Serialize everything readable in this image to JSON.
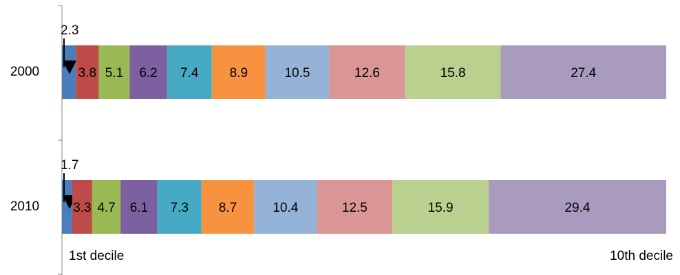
{
  "chart_data": {
    "type": "stacked-bar",
    "orientation": "horizontal",
    "categories": [
      "2000",
      "2010"
    ],
    "series": [
      {
        "color": "#4a7ebb",
        "values": [
          2.3,
          1.7
        ]
      },
      {
        "color": "#be4b48",
        "values": [
          3.8,
          3.3
        ]
      },
      {
        "color": "#98b954",
        "values": [
          5.1,
          4.7
        ]
      },
      {
        "color": "#7d60a0",
        "values": [
          6.2,
          6.1
        ]
      },
      {
        "color": "#46aac5",
        "values": [
          7.4,
          7.3
        ]
      },
      {
        "color": "#f69240",
        "values": [
          8.9,
          8.7
        ]
      },
      {
        "color": "#95b3d7",
        "values": [
          10.5,
          10.4
        ]
      },
      {
        "color": "#d99694",
        "values": [
          12.6,
          12.5
        ]
      },
      {
        "color": "#b9d08f",
        "values": [
          15.8,
          15.9
        ]
      },
      {
        "color": "#a99bbd",
        "values": [
          27.4,
          29.4
        ]
      }
    ],
    "xlim": [
      0,
      100
    ],
    "annotations": [
      "1st decile",
      "10th decile"
    ]
  }
}
